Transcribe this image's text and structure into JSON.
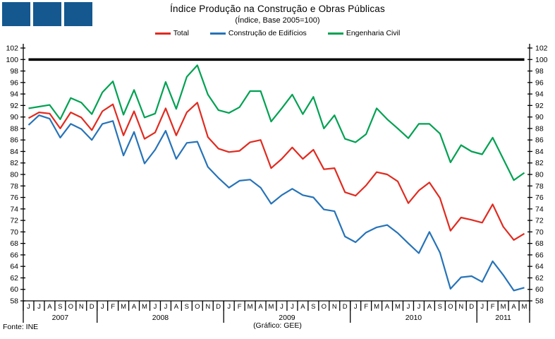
{
  "header": {
    "title": "Índice Produção na Construção e Obras Públicas",
    "subtitle": "(Índice, Base 2005=100)",
    "logo": {
      "square_count": 3,
      "color": "#14588f"
    }
  },
  "footer": {
    "source": "Fonte: INE",
    "credit": "(Gráfico: GEE)"
  },
  "chart_data": {
    "type": "line",
    "title": "Índice Produção na Construção e Obras Públicas",
    "subtitle": "(Índice, Base 2005=100)",
    "xlabel": "",
    "ylabel": "",
    "ylim": [
      58,
      102
    ],
    "ytick_step": 2,
    "grid": false,
    "legend_position": "top",
    "reference_line": {
      "value": 100,
      "color": "#000000"
    },
    "axis_color": "#000000",
    "months": [
      "J",
      "J",
      "A",
      "S",
      "O",
      "N",
      "D",
      "J",
      "F",
      "M",
      "A",
      "M",
      "J",
      "J",
      "A",
      "S",
      "O",
      "N",
      "D",
      "J",
      "F",
      "M",
      "A",
      "M",
      "J",
      "J",
      "A",
      "S",
      "O",
      "N",
      "D",
      "J",
      "F",
      "M",
      "A",
      "M",
      "J",
      "J",
      "A",
      "S",
      "O",
      "N",
      "D",
      "J",
      "F",
      "M",
      "A",
      "M"
    ],
    "year_groups": [
      {
        "label": "2007",
        "count": 7
      },
      {
        "label": "2008",
        "count": 12
      },
      {
        "label": "2009",
        "count": 12
      },
      {
        "label": "2010",
        "count": 12
      },
      {
        "label": "2011",
        "count": 5
      }
    ],
    "series": [
      {
        "name": "Total",
        "color": "#e02b20",
        "values": [
          89.8,
          90.8,
          90.6,
          88.0,
          90.8,
          89.9,
          87.7,
          91.0,
          92.2,
          86.8,
          91.0,
          86.2,
          87.3,
          91.5,
          86.8,
          90.8,
          92.5,
          86.5,
          84.5,
          83.9,
          84.1,
          85.6,
          86.0,
          81.1,
          82.7,
          84.7,
          82.7,
          84.3,
          80.9,
          81.1,
          76.9,
          76.3,
          78.1,
          80.4,
          80.0,
          78.8,
          75.0,
          77.2,
          78.6,
          75.9,
          70.2,
          72.5,
          72.1,
          71.6,
          74.8,
          70.9,
          68.6,
          69.7
        ]
      },
      {
        "name": "Construção de Edifícios",
        "color": "#2673b8",
        "values": [
          88.6,
          90.3,
          89.7,
          86.4,
          88.8,
          87.9,
          86.0,
          88.8,
          89.3,
          83.3,
          87.4,
          81.9,
          84.3,
          87.6,
          82.7,
          85.5,
          85.7,
          81.3,
          79.4,
          77.7,
          78.9,
          79.1,
          77.7,
          74.9,
          76.4,
          77.5,
          76.4,
          76.0,
          73.9,
          73.6,
          69.2,
          68.2,
          69.9,
          70.8,
          71.2,
          69.8,
          68.0,
          66.3,
          70.0,
          66.4,
          60.1,
          62.1,
          62.3,
          61.3,
          64.9,
          62.5,
          59.8,
          60.3
        ]
      },
      {
        "name": "Engenharia Civil",
        "color": "#00a152",
        "values": [
          91.5,
          91.8,
          92.1,
          89.6,
          93.3,
          92.5,
          90.5,
          94.3,
          96.2,
          90.4,
          94.7,
          89.9,
          90.6,
          96.1,
          91.4,
          97.0,
          99.0,
          93.9,
          91.2,
          90.7,
          91.7,
          94.5,
          94.5,
          89.2,
          91.5,
          93.9,
          90.5,
          93.5,
          88.0,
          90.3,
          86.2,
          85.6,
          87.0,
          91.5,
          89.6,
          88.0,
          86.3,
          88.8,
          88.8,
          87.1,
          82.1,
          85.1,
          84.0,
          83.5,
          86.4,
          82.7,
          79.0,
          80.3
        ]
      }
    ]
  }
}
